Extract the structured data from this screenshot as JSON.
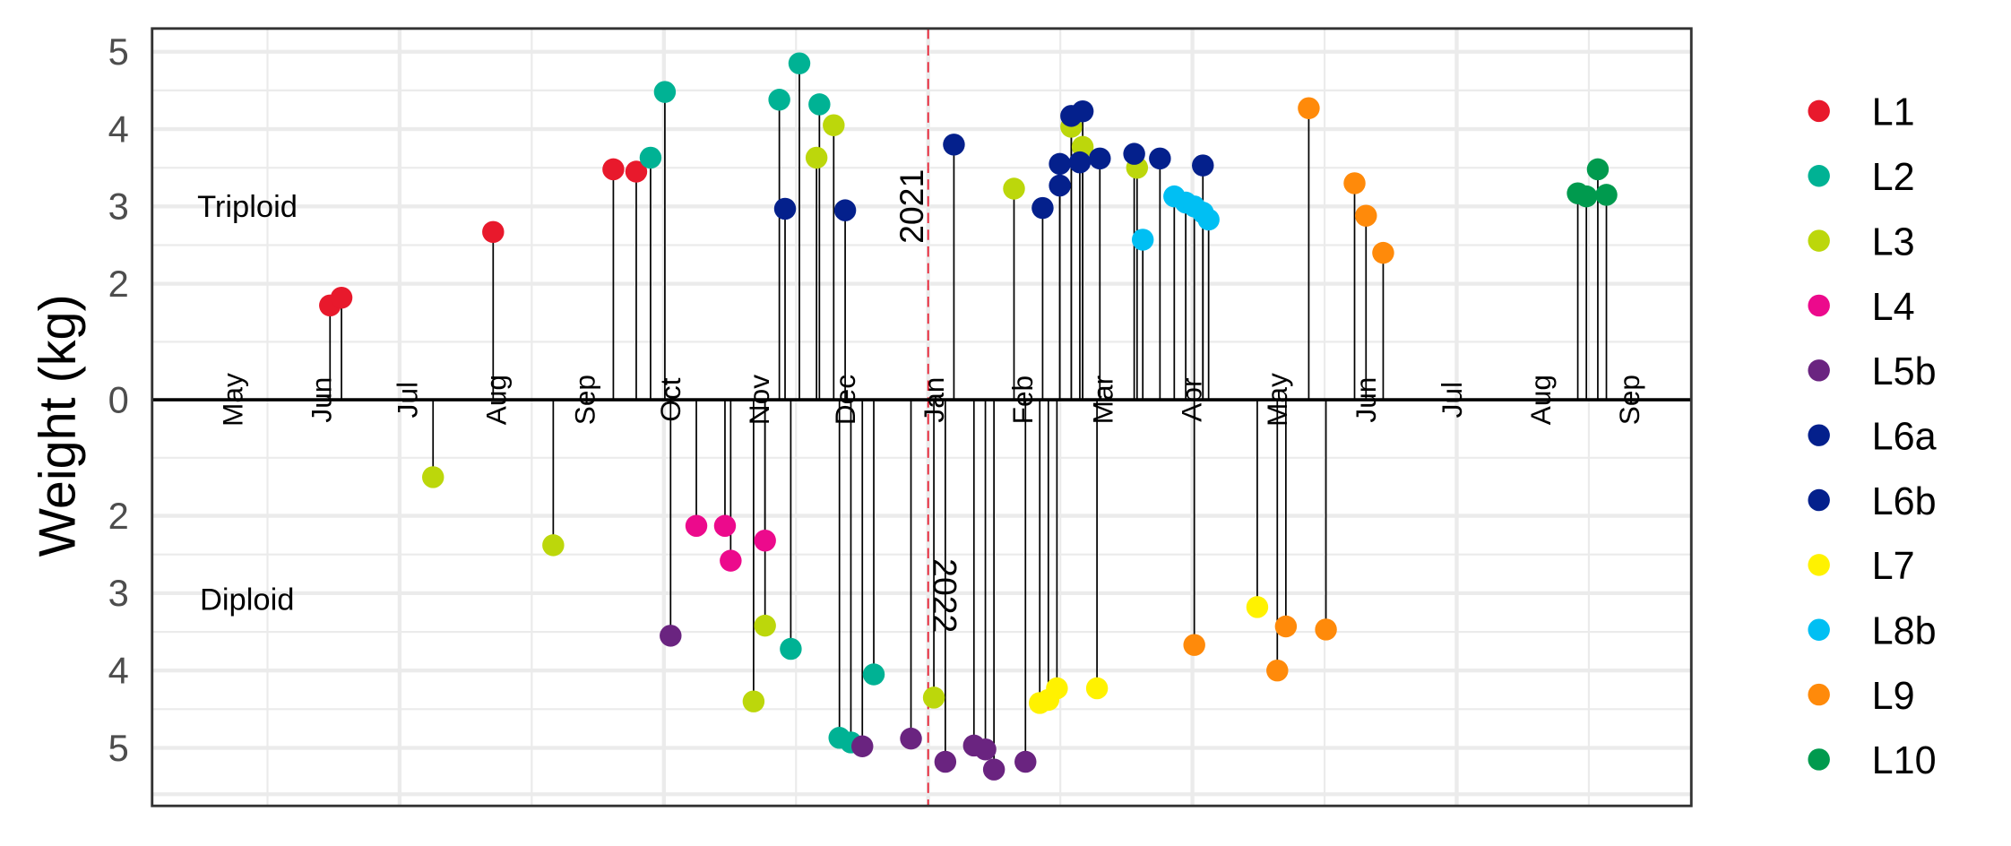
{
  "chart_data": {
    "type": "lollipop",
    "ylabel": "Weight (kg)",
    "y_ticks_top": [
      "5",
      "4",
      "3",
      "2",
      "0"
    ],
    "y_ticks_bottom": [
      "2",
      "3",
      "4",
      "5"
    ],
    "y_tick_values_top": [
      5,
      4,
      3,
      2,
      0
    ],
    "y_tick_values_bottom": [
      2,
      3,
      4,
      5
    ],
    "x_ticks": [
      {
        "label": "May",
        "date": "2021-05-01"
      },
      {
        "label": "Jun",
        "date": "2021-06-01"
      },
      {
        "label": "Jul",
        "date": "2021-07-01"
      },
      {
        "label": "Aug",
        "date": "2021-08-01"
      },
      {
        "label": "Sep",
        "date": "2021-09-01"
      },
      {
        "label": "Oct",
        "date": "2021-10-01"
      },
      {
        "label": "Nov",
        "date": "2021-11-01"
      },
      {
        "label": "Dec",
        "date": "2021-12-01"
      },
      {
        "label": "Jan",
        "date": "2022-01-01"
      },
      {
        "label": "Feb",
        "date": "2022-02-01"
      },
      {
        "label": "Mar",
        "date": "2022-03-01"
      },
      {
        "label": "Apr",
        "date": "2022-04-01"
      },
      {
        "label": "May",
        "date": "2022-05-01"
      },
      {
        "label": "Jun",
        "date": "2022-06-01"
      },
      {
        "label": "Jul",
        "date": "2022-07-01"
      },
      {
        "label": "Aug",
        "date": "2022-08-01"
      },
      {
        "label": "Sep",
        "date": "2022-09-01"
      }
    ],
    "xlim": [
      "2021-04-25",
      "2022-09-23"
    ],
    "year_divider": {
      "date": "2022-01-01",
      "color": "#e8192c",
      "label_top": "2021",
      "label_bottom": "2022"
    },
    "annotations": {
      "top": "Triploid",
      "bottom": "Diploid"
    },
    "grid": true,
    "legend_position": "right",
    "series": [
      {
        "name": "L1",
        "color": "#e8192c",
        "triploid": [
          [
            "2021-06-06",
            1.72
          ],
          [
            "2021-06-10",
            1.82
          ],
          [
            "2021-08-02",
            2.67
          ],
          [
            "2021-09-13",
            3.48
          ],
          [
            "2021-09-21",
            3.45
          ]
        ],
        "diploid": []
      },
      {
        "name": "L2",
        "color": "#00b294",
        "triploid": [
          [
            "2021-09-26",
            3.63
          ],
          [
            "2021-10-01",
            4.48
          ],
          [
            "2021-11-10",
            4.38
          ],
          [
            "2021-11-17",
            4.85
          ],
          [
            "2021-11-24",
            4.32
          ]
        ],
        "diploid": [
          [
            "2021-11-14",
            3.72
          ],
          [
            "2021-12-01",
            4.87
          ],
          [
            "2021-12-05",
            4.93
          ],
          [
            "2021-12-13",
            4.05
          ]
        ]
      },
      {
        "name": "L3",
        "color": "#bcd70b",
        "triploid": [
          [
            "2021-11-23",
            3.63
          ],
          [
            "2021-11-29",
            4.05
          ],
          [
            "2022-01-31",
            3.23
          ],
          [
            "2022-02-20",
            4.03
          ],
          [
            "2022-02-24",
            3.77
          ],
          [
            "2022-03-15",
            3.5
          ]
        ],
        "diploid": [
          [
            "2021-07-12",
            1.5
          ],
          [
            "2021-08-23",
            2.38
          ],
          [
            "2021-11-01",
            4.4
          ],
          [
            "2021-11-05",
            3.42
          ],
          [
            "2022-01-03",
            4.35
          ]
        ]
      },
      {
        "name": "L4",
        "color": "#ec0a8c",
        "triploid": [],
        "diploid": [
          [
            "2021-10-12",
            2.13
          ],
          [
            "2021-10-22",
            2.13
          ],
          [
            "2021-10-24",
            2.58
          ],
          [
            "2021-11-05",
            2.32
          ]
        ]
      },
      {
        "name": "L5b",
        "color": "#6a2480",
        "triploid": [],
        "diploid": [
          [
            "2021-10-03",
            3.55
          ],
          [
            "2021-12-09",
            4.98
          ],
          [
            "2021-12-26",
            4.88
          ],
          [
            "2022-01-07",
            5.18
          ],
          [
            "2022-01-17",
            4.97
          ],
          [
            "2022-01-21",
            5.02
          ],
          [
            "2022-01-24",
            5.28
          ],
          [
            "2022-02-04",
            5.18
          ]
        ]
      },
      {
        "name": "L6a",
        "color": "#04208c",
        "triploid": [
          [
            "2021-11-12",
            2.97
          ],
          [
            "2021-12-03",
            2.95
          ],
          [
            "2022-01-10",
            3.8
          ],
          [
            "2022-02-10",
            2.98
          ],
          [
            "2022-02-16",
            3.27
          ],
          [
            "2022-02-16",
            3.55
          ],
          [
            "2022-02-20",
            4.17
          ],
          [
            "2022-02-23",
            3.57
          ],
          [
            "2022-02-24",
            4.23
          ],
          [
            "2022-03-02",
            3.62
          ],
          [
            "2022-03-14",
            3.68
          ],
          [
            "2022-03-23",
            3.62
          ],
          [
            "2022-04-07",
            3.53
          ]
        ],
        "diploid": []
      },
      {
        "name": "L6b",
        "color": "#04208c",
        "triploid": [],
        "diploid": []
      },
      {
        "name": "L7",
        "color": "#fff200",
        "triploid": [],
        "diploid": [
          [
            "2022-02-09",
            4.42
          ],
          [
            "2022-02-12",
            4.38
          ],
          [
            "2022-02-15",
            4.23
          ],
          [
            "2022-03-01",
            4.23
          ],
          [
            "2022-04-26",
            3.18
          ]
        ]
      },
      {
        "name": "L8b",
        "color": "#00bff3",
        "triploid": [
          [
            "2022-03-17",
            2.57
          ],
          [
            "2022-03-28",
            3.13
          ],
          [
            "2022-04-01",
            3.05
          ],
          [
            "2022-04-04",
            3.0
          ],
          [
            "2022-04-07",
            2.92
          ],
          [
            "2022-04-09",
            2.83
          ]
        ],
        "diploid": []
      },
      {
        "name": "L9",
        "color": "#ff8a0a",
        "triploid": [
          [
            "2022-05-14",
            4.27
          ],
          [
            "2022-05-30",
            3.3
          ],
          [
            "2022-06-03",
            2.88
          ],
          [
            "2022-06-09",
            2.4
          ]
        ],
        "diploid": [
          [
            "2022-04-04",
            3.67
          ],
          [
            "2022-05-03",
            4.0
          ],
          [
            "2022-05-06",
            3.43
          ],
          [
            "2022-05-20",
            3.47
          ]
        ]
      },
      {
        "name": "L10",
        "color": "#009a4e",
        "triploid": [
          [
            "2022-08-16",
            3.17
          ],
          [
            "2022-08-19",
            3.13
          ],
          [
            "2022-08-23",
            3.48
          ],
          [
            "2022-08-26",
            3.15
          ]
        ],
        "diploid": []
      }
    ]
  }
}
